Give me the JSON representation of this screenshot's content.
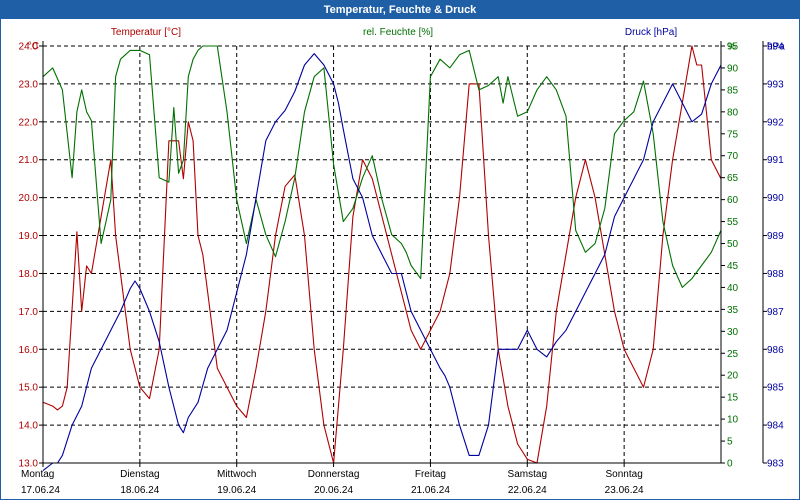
{
  "window": {
    "title": "Temperatur, Feuchte & Druck"
  },
  "colors": {
    "temp": "#b00000",
    "hum": "#007000",
    "press": "#0000a0",
    "grid": "#000000",
    "title_bar": "#1f5fa6"
  },
  "chart_data": {
    "type": "line",
    "x_labels": [
      {
        "day": "Montag",
        "date": "17.06.24"
      },
      {
        "day": "Dienstag",
        "date": "18.06.24"
      },
      {
        "day": "Mittwoch",
        "date": "19.06.24"
      },
      {
        "day": "Donnerstag",
        "date": "20.06.24"
      },
      {
        "day": "Freitag",
        "date": "21.06.24"
      },
      {
        "day": "Samstag",
        "date": "22.06.24"
      },
      {
        "day": "Sonntag",
        "date": "23.06.24"
      }
    ],
    "axes": {
      "temp": {
        "label": "Temperatur [°C]",
        "unit": "°C",
        "min": 13.0,
        "max": 24.0,
        "ticks": [
          "13.0",
          "14.0",
          "15.0",
          "16.0",
          "17.0",
          "18.0",
          "19.0",
          "20.0",
          "21.0",
          "22.0",
          "23.0",
          "24.0"
        ]
      },
      "hum": {
        "label": "rel. Feuchte [%]",
        "unit": "%",
        "min": 0,
        "max": 95,
        "ticks": [
          "0",
          "5",
          "10",
          "15",
          "20",
          "25",
          "30",
          "35",
          "40",
          "45",
          "50",
          "55",
          "60",
          "65",
          "70",
          "75",
          "80",
          "85",
          "90",
          "95"
        ]
      },
      "press": {
        "label": "Druck [hPa]",
        "unit": "hPa",
        "min": 983,
        "max": 994,
        "ticks": [
          "983",
          "984",
          "985",
          "986",
          "987",
          "988",
          "989",
          "990",
          "991",
          "992",
          "993",
          "994"
        ]
      }
    },
    "grid": true,
    "series": [
      {
        "name": "Temperatur [°C]",
        "axis": "temp",
        "x": [
          0.0,
          0.1,
          0.15,
          0.2,
          0.25,
          0.35,
          0.4,
          0.45,
          0.5,
          0.6,
          0.7,
          0.75,
          0.8,
          0.9,
          1.0,
          1.1,
          1.2,
          1.3,
          1.4,
          1.45,
          1.5,
          1.55,
          1.6,
          1.65,
          1.7,
          1.8,
          1.9,
          2.0,
          2.1,
          2.2,
          2.3,
          2.4,
          2.5,
          2.6,
          2.7,
          2.8,
          2.9,
          3.0,
          3.1,
          3.2,
          3.3,
          3.4,
          3.5,
          3.6,
          3.7,
          3.8,
          3.9,
          4.0,
          4.1,
          4.2,
          4.3,
          4.4,
          4.5,
          4.6,
          4.7,
          4.8,
          4.85,
          4.9,
          5.0,
          5.1,
          5.2,
          5.3,
          5.4,
          5.5,
          5.6,
          5.7,
          5.8,
          5.9,
          6.0,
          6.1,
          6.2,
          6.3,
          6.4,
          6.5,
          6.6,
          6.7,
          6.75,
          6.8,
          6.9,
          7.0
        ],
        "values": [
          14.6,
          14.5,
          14.4,
          14.5,
          15.0,
          19.1,
          17.0,
          18.2,
          18.0,
          19.5,
          21.0,
          19.0,
          18.0,
          16.0,
          15.0,
          14.7,
          16.0,
          21.5,
          21.5,
          20.5,
          22.0,
          21.5,
          19.0,
          18.5,
          17.5,
          15.5,
          15.0,
          14.5,
          14.2,
          15.5,
          17.0,
          19.0,
          20.3,
          20.6,
          19.0,
          16.0,
          14.0,
          13.0,
          16.0,
          19.5,
          21.0,
          20.5,
          19.5,
          18.5,
          17.5,
          16.5,
          16.0,
          16.5,
          17.0,
          18.0,
          20.0,
          23.0,
          23.0,
          19.0,
          16.0,
          14.5,
          14.0,
          13.5,
          13.1,
          13.0,
          14.5,
          17.0,
          18.5,
          20.0,
          21.0,
          20.0,
          18.5,
          17.0,
          16.0,
          15.5,
          15.0,
          16.0,
          19.0,
          21.0,
          22.5,
          24.0,
          23.5,
          23.5,
          21.0,
          20.5
        ]
      },
      {
        "name": "rel. Feuchte [%]",
        "axis": "hum",
        "x": [
          0.0,
          0.1,
          0.2,
          0.3,
          0.35,
          0.4,
          0.45,
          0.5,
          0.6,
          0.65,
          0.7,
          0.75,
          0.8,
          0.85,
          0.9,
          1.0,
          1.1,
          1.2,
          1.3,
          1.35,
          1.4,
          1.45,
          1.5,
          1.55,
          1.6,
          1.65,
          1.7,
          1.8,
          1.9,
          2.0,
          2.1,
          2.2,
          2.3,
          2.4,
          2.5,
          2.6,
          2.7,
          2.8,
          2.9,
          3.0,
          3.1,
          3.2,
          3.3,
          3.4,
          3.5,
          3.6,
          3.7,
          3.75,
          3.8,
          3.9,
          4.0,
          4.1,
          4.2,
          4.3,
          4.4,
          4.5,
          4.6,
          4.7,
          4.75,
          4.8,
          4.9,
          5.0,
          5.1,
          5.2,
          5.3,
          5.4,
          5.5,
          5.6,
          5.7,
          5.8,
          5.9,
          6.0,
          6.1,
          6.2,
          6.3,
          6.4,
          6.5,
          6.6,
          6.7,
          6.8,
          6.9,
          7.0
        ],
        "values": [
          88,
          90,
          85,
          65,
          80,
          85,
          80,
          78,
          50,
          55,
          60,
          88,
          92,
          93,
          94,
          94,
          93,
          65,
          64,
          81,
          66,
          69,
          88,
          92,
          94,
          95,
          95,
          95,
          80,
          60,
          50,
          60,
          52,
          47,
          55,
          65,
          80,
          88,
          90,
          68,
          55,
          58,
          65,
          70,
          60,
          52,
          50,
          48,
          45,
          42,
          88,
          92,
          90,
          93,
          94,
          85,
          86,
          88,
          82,
          88,
          79,
          80,
          85,
          88,
          85,
          79,
          53,
          48,
          50,
          58,
          75,
          78,
          80,
          87,
          75,
          55,
          45,
          40,
          42,
          45,
          48,
          53
        ]
      },
      {
        "name": "Druck [hPa]",
        "axis": "press",
        "x": [
          0.0,
          0.1,
          0.15,
          0.2,
          0.3,
          0.4,
          0.5,
          0.6,
          0.7,
          0.8,
          0.9,
          0.95,
          1.0,
          1.1,
          1.2,
          1.3,
          1.4,
          1.45,
          1.5,
          1.6,
          1.7,
          1.8,
          1.9,
          2.0,
          2.1,
          2.2,
          2.3,
          2.4,
          2.5,
          2.6,
          2.7,
          2.8,
          2.9,
          3.0,
          3.05,
          3.1,
          3.2,
          3.3,
          3.4,
          3.5,
          3.6,
          3.7,
          3.8,
          3.9,
          4.0,
          4.1,
          4.15,
          4.2,
          4.3,
          4.4,
          4.5,
          4.6,
          4.7,
          4.8,
          4.9,
          5.0,
          5.1,
          5.2,
          5.3,
          5.4,
          5.5,
          5.6,
          5.7,
          5.8,
          5.9,
          6.0,
          6.1,
          6.2,
          6.3,
          6.4,
          6.5,
          6.6,
          6.7,
          6.8,
          6.9,
          7.0
        ],
        "values": [
          982.8,
          983.0,
          983.0,
          983.2,
          984.0,
          984.5,
          985.5,
          986.0,
          986.5,
          987.0,
          987.6,
          987.8,
          987.6,
          987.0,
          986.2,
          985.0,
          984.0,
          983.8,
          984.2,
          984.6,
          985.5,
          986.0,
          986.5,
          987.5,
          988.5,
          990.0,
          991.5,
          992.0,
          992.3,
          992.8,
          993.5,
          993.8,
          993.5,
          993.0,
          992.5,
          991.8,
          990.5,
          990.0,
          989.0,
          988.5,
          988.0,
          988.0,
          987.0,
          986.5,
          986.0,
          985.5,
          985.3,
          985.0,
          984.0,
          983.2,
          983.2,
          984.0,
          986.0,
          986.0,
          986.0,
          986.5,
          986.0,
          985.8,
          986.2,
          986.5,
          987.0,
          987.5,
          988.0,
          988.5,
          989.5,
          990.0,
          990.5,
          991.0,
          992.0,
          992.5,
          993.0,
          992.5,
          992.0,
          992.2,
          993.0,
          993.5
        ]
      }
    ]
  }
}
